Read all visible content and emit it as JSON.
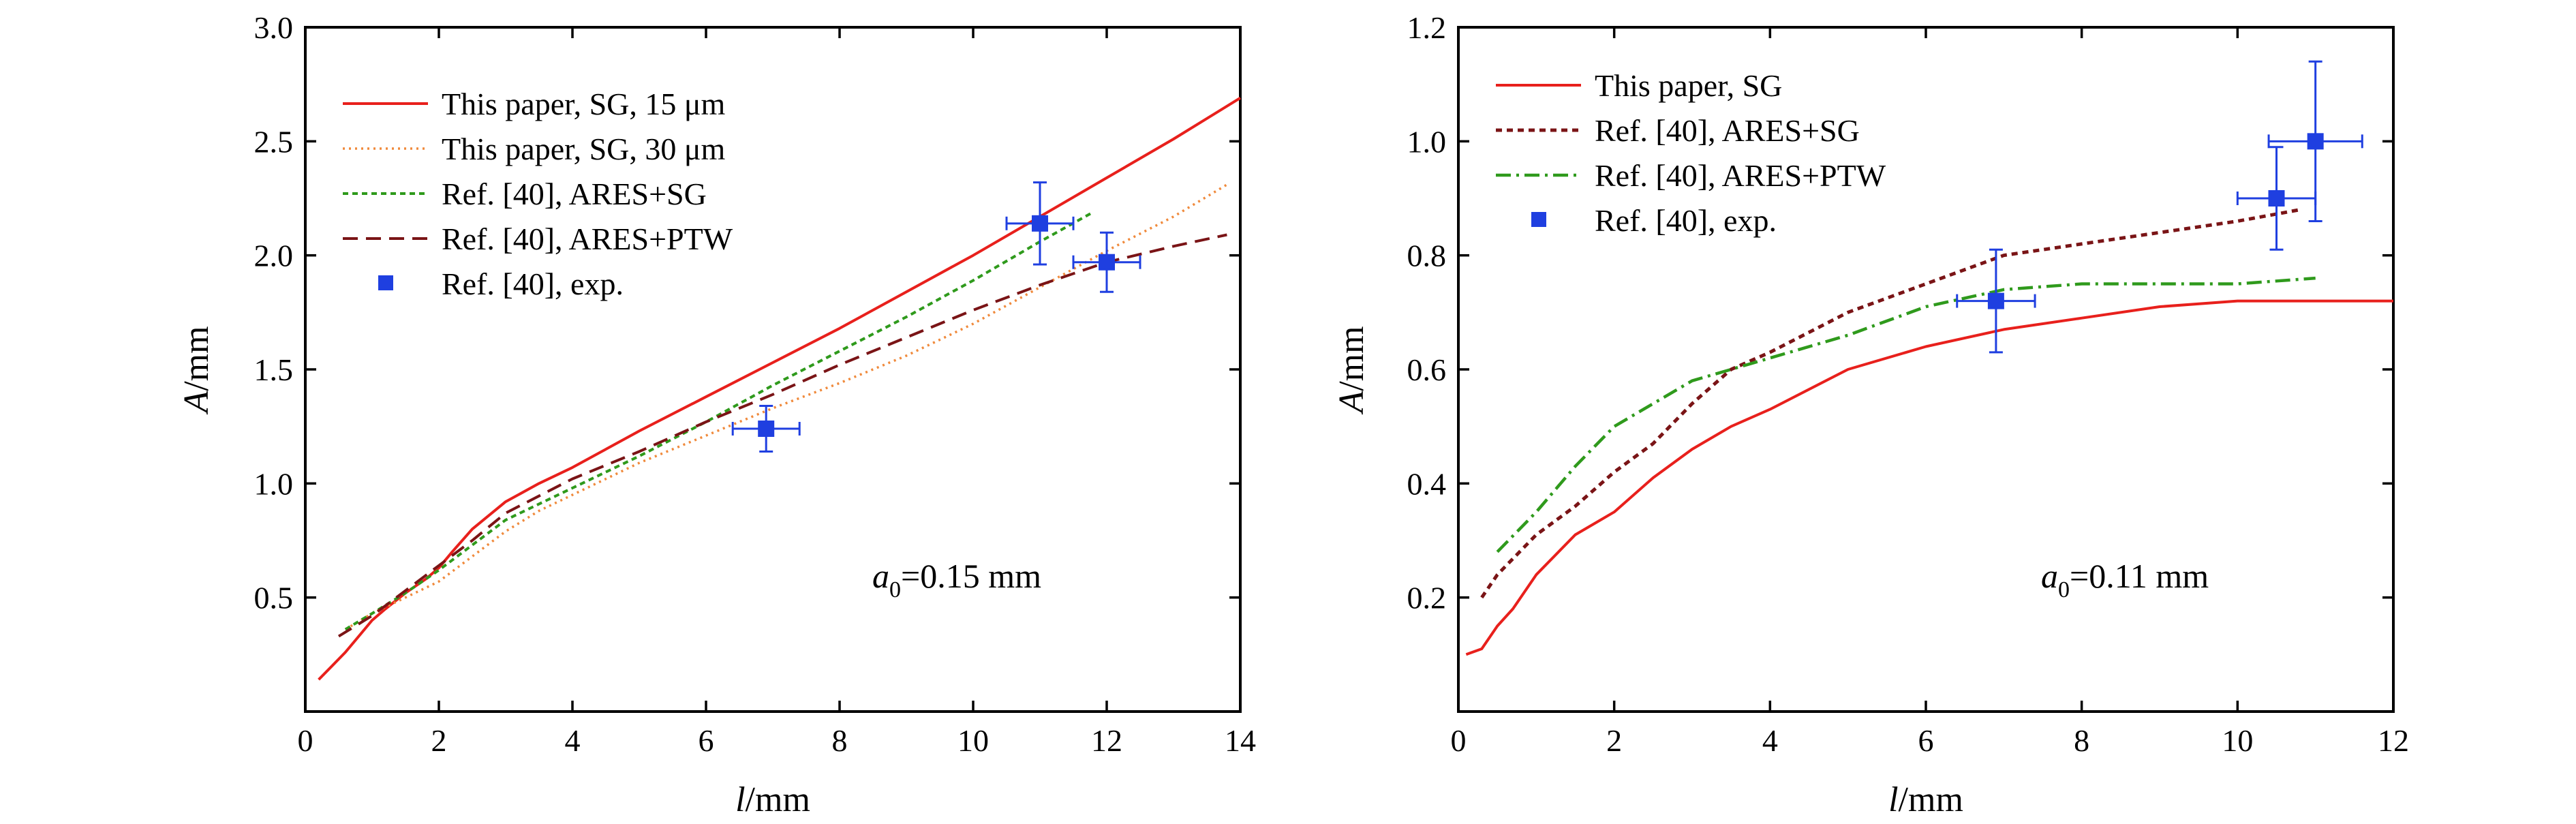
{
  "chart_data": [
    {
      "type": "line",
      "xlabel": "l/mm",
      "ylabel": "A/mm",
      "xlim": [
        0,
        14
      ],
      "ylim": [
        0,
        3.0
      ],
      "xticks": [
        0,
        2,
        4,
        6,
        8,
        10,
        12,
        14
      ],
      "yticks": [
        0.5,
        1.0,
        1.5,
        2.0,
        2.5,
        3.0
      ],
      "xtick_labels": [
        "0",
        "2",
        "4",
        "6",
        "8",
        "10",
        "12",
        "14"
      ],
      "ytick_labels": [
        "0.5",
        "1.0",
        "1.5",
        "2.0",
        "2.5",
        "3.0"
      ],
      "annotation": "a0=0.15 mm",
      "legend_position": "top-left",
      "series": [
        {
          "name": "This paper, SG, 15 μm",
          "style": "solid",
          "color": "#e8201c",
          "x": [
            0.2,
            0.4,
            0.6,
            0.8,
            1.0,
            1.2,
            1.5,
            1.8,
            2.0,
            2.2,
            2.5,
            3.0,
            3.5,
            4.0,
            5.0,
            6.0,
            7.0,
            8.0,
            9.0,
            10.0,
            11.0,
            12.0,
            13.0,
            14.0
          ],
          "y": [
            0.14,
            0.2,
            0.26,
            0.33,
            0.4,
            0.45,
            0.52,
            0.58,
            0.63,
            0.7,
            0.8,
            0.92,
            1.0,
            1.07,
            1.23,
            1.38,
            1.53,
            1.68,
            1.84,
            2.0,
            2.17,
            2.34,
            2.51,
            2.69
          ]
        },
        {
          "name": "This paper, SG, 30 μm",
          "style": "dotted",
          "color": "#f08a3c",
          "x": [
            0.6,
            1.0,
            1.5,
            2.0,
            2.5,
            3.0,
            3.5,
            4.0,
            5.0,
            6.0,
            7.0,
            8.0,
            9.0,
            10.0,
            11.0,
            12.0,
            13.0,
            13.8
          ],
          "y": [
            0.36,
            0.43,
            0.5,
            0.57,
            0.68,
            0.79,
            0.88,
            0.95,
            1.09,
            1.21,
            1.33,
            1.44,
            1.56,
            1.7,
            1.86,
            2.02,
            2.17,
            2.31
          ]
        },
        {
          "name": "Ref. [40], ARES+SG",
          "style": "dotted-green",
          "color": "#2f9a1c",
          "x": [
            0.6,
            1.0,
            1.5,
            2.0,
            2.5,
            3.0,
            4.0,
            5.0,
            6.0,
            7.0,
            8.0,
            9.0,
            10.0,
            11.0,
            11.8
          ],
          "y": [
            0.36,
            0.43,
            0.52,
            0.62,
            0.73,
            0.84,
            0.98,
            1.12,
            1.27,
            1.43,
            1.58,
            1.73,
            1.89,
            2.06,
            2.19
          ]
        },
        {
          "name": "Ref. [40], ARES+PTW",
          "style": "dashed",
          "color": "#7a1416",
          "x": [
            0.5,
            1.0,
            1.5,
            2.0,
            2.5,
            3.0,
            4.0,
            5.0,
            6.0,
            7.0,
            8.0,
            9.0,
            10.0,
            11.0,
            12.0,
            13.0,
            13.8
          ],
          "y": [
            0.33,
            0.42,
            0.53,
            0.64,
            0.75,
            0.87,
            1.02,
            1.14,
            1.27,
            1.39,
            1.52,
            1.64,
            1.76,
            1.87,
            1.97,
            2.04,
            2.09
          ]
        },
        {
          "name": "Ref. [40], exp.",
          "style": "marker",
          "color": "#1f3fe0",
          "x": [
            6.9,
            11.0,
            12.0
          ],
          "y": [
            1.24,
            2.14,
            1.97
          ],
          "xerr": [
            0.5,
            0.5,
            0.5
          ],
          "yerr": [
            0.1,
            0.18,
            0.13
          ]
        }
      ]
    },
    {
      "type": "line",
      "xlabel": "l/mm",
      "ylabel": "A/mm",
      "xlim": [
        0,
        12
      ],
      "ylim": [
        0,
        1.2
      ],
      "xticks": [
        0,
        2,
        4,
        6,
        8,
        10,
        12
      ],
      "yticks": [
        0.2,
        0.4,
        0.6,
        0.8,
        1.0,
        1.2
      ],
      "xtick_labels": [
        "0",
        "2",
        "4",
        "6",
        "8",
        "10",
        "12"
      ],
      "ytick_labels": [
        "0.2",
        "0.4",
        "0.6",
        "0.8",
        "1.0",
        "1.2"
      ],
      "annotation": "a0=0.11 mm",
      "legend_position": "top-left",
      "series": [
        {
          "name": "This paper, SG",
          "style": "solid",
          "color": "#e8201c",
          "x": [
            0.1,
            0.3,
            0.5,
            0.7,
            1.0,
            1.5,
            2.0,
            2.5,
            3.0,
            3.5,
            4.0,
            5.0,
            6.0,
            7.0,
            8.0,
            9.0,
            10.0,
            11.0,
            12.0
          ],
          "y": [
            0.1,
            0.11,
            0.15,
            0.18,
            0.24,
            0.31,
            0.35,
            0.41,
            0.46,
            0.5,
            0.53,
            0.6,
            0.64,
            0.67,
            0.69,
            0.71,
            0.72,
            0.72,
            0.72
          ]
        },
        {
          "name": "Ref. [40], ARES+SG",
          "style": "dashed-dotted",
          "color": "#7a1416",
          "x": [
            0.3,
            0.5,
            1.0,
            1.5,
            2.0,
            2.5,
            3.0,
            3.5,
            4.0,
            5.0,
            6.0,
            7.0,
            8.0,
            9.0,
            10.0,
            10.8
          ],
          "y": [
            0.2,
            0.24,
            0.31,
            0.36,
            0.42,
            0.47,
            0.54,
            0.6,
            0.63,
            0.7,
            0.75,
            0.8,
            0.82,
            0.84,
            0.86,
            0.88
          ]
        },
        {
          "name": "Ref. [40], ARES+PTW",
          "style": "dash-dot",
          "color": "#2f9a1c",
          "x": [
            0.5,
            1.0,
            1.5,
            2.0,
            2.5,
            3.0,
            3.5,
            4.0,
            5.0,
            6.0,
            7.0,
            8.0,
            9.0,
            10.0,
            11.0
          ],
          "y": [
            0.28,
            0.35,
            0.43,
            0.5,
            0.54,
            0.58,
            0.6,
            0.62,
            0.66,
            0.71,
            0.74,
            0.75,
            0.75,
            0.75,
            0.76
          ]
        },
        {
          "name": "Ref. [40], exp.",
          "style": "marker",
          "color": "#1f3fe0",
          "x": [
            6.9,
            10.5,
            11.0
          ],
          "y": [
            0.72,
            0.9,
            1.0
          ],
          "xerr": [
            0.5,
            0.5,
            0.6
          ],
          "yerr": [
            0.09,
            0.09,
            0.14
          ]
        }
      ]
    }
  ]
}
